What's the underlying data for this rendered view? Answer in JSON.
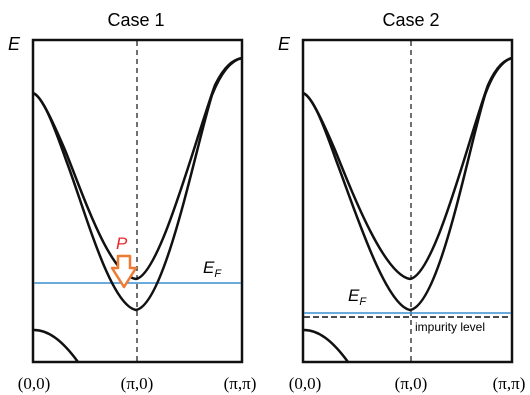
{
  "panels": [
    {
      "title": "Case 1",
      "energy_axis_label": "E",
      "fermi_label": "E",
      "fermi_sub": "F",
      "pressure_label": "P",
      "x_ticks": [
        "(0,0)",
        "(π,0)",
        "(π,π)"
      ]
    },
    {
      "title": "Case 2",
      "energy_axis_label": "E",
      "fermi_label": "E",
      "fermi_sub": "F",
      "impurity_label": "impurity level",
      "x_ticks": [
        "(0,0)",
        "(π,0)",
        "(π,π)"
      ]
    }
  ],
  "colors": {
    "fermi_line": "#3a8fd0",
    "pressure_arrow": "#ee7b33",
    "pressure_label": "#e8262c",
    "band": "#111111",
    "impurity_line": "#111111"
  }
}
